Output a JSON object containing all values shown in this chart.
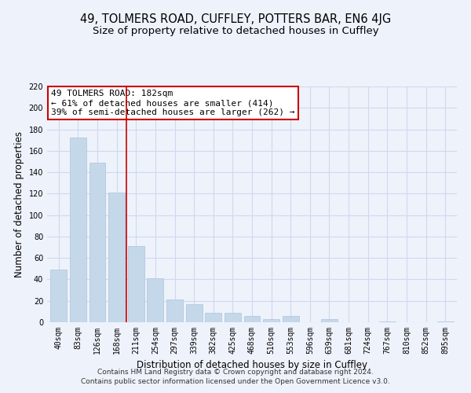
{
  "title": "49, TOLMERS ROAD, CUFFLEY, POTTERS BAR, EN6 4JG",
  "subtitle": "Size of property relative to detached houses in Cuffley",
  "xlabel": "Distribution of detached houses by size in Cuffley",
  "ylabel": "Number of detached properties",
  "bar_labels": [
    "40sqm",
    "83sqm",
    "126sqm",
    "168sqm",
    "211sqm",
    "254sqm",
    "297sqm",
    "339sqm",
    "382sqm",
    "425sqm",
    "468sqm",
    "510sqm",
    "553sqm",
    "596sqm",
    "639sqm",
    "681sqm",
    "724sqm",
    "767sqm",
    "810sqm",
    "852sqm",
    "895sqm"
  ],
  "bar_values": [
    49,
    172,
    149,
    121,
    71,
    41,
    21,
    17,
    9,
    9,
    6,
    3,
    6,
    0,
    3,
    0,
    0,
    1,
    0,
    0,
    1
  ],
  "bar_color": "#c5d8ea",
  "bar_edge_color": "#aac4dc",
  "vline_x": 3.5,
  "vline_color": "#cc0000",
  "annotation_line1": "49 TOLMERS ROAD: 182sqm",
  "annotation_line2": "← 61% of detached houses are smaller (414)",
  "annotation_line3": "39% of semi-detached houses are larger (262) →",
  "annotation_box_color": "#ffffff",
  "annotation_box_edge": "#cc0000",
  "ylim": [
    0,
    220
  ],
  "yticks": [
    0,
    20,
    40,
    60,
    80,
    100,
    120,
    140,
    160,
    180,
    200,
    220
  ],
  "footer_line1": "Contains HM Land Registry data © Crown copyright and database right 2024.",
  "footer_line2": "Contains public sector information licensed under the Open Government Licence v3.0.",
  "bg_color": "#eef2fb",
  "grid_color": "#d0d8ee",
  "title_fontsize": 10.5,
  "subtitle_fontsize": 9.5,
  "axis_label_fontsize": 8.5,
  "tick_fontsize": 7,
  "annotation_fontsize": 8,
  "footer_fontsize": 6.5
}
